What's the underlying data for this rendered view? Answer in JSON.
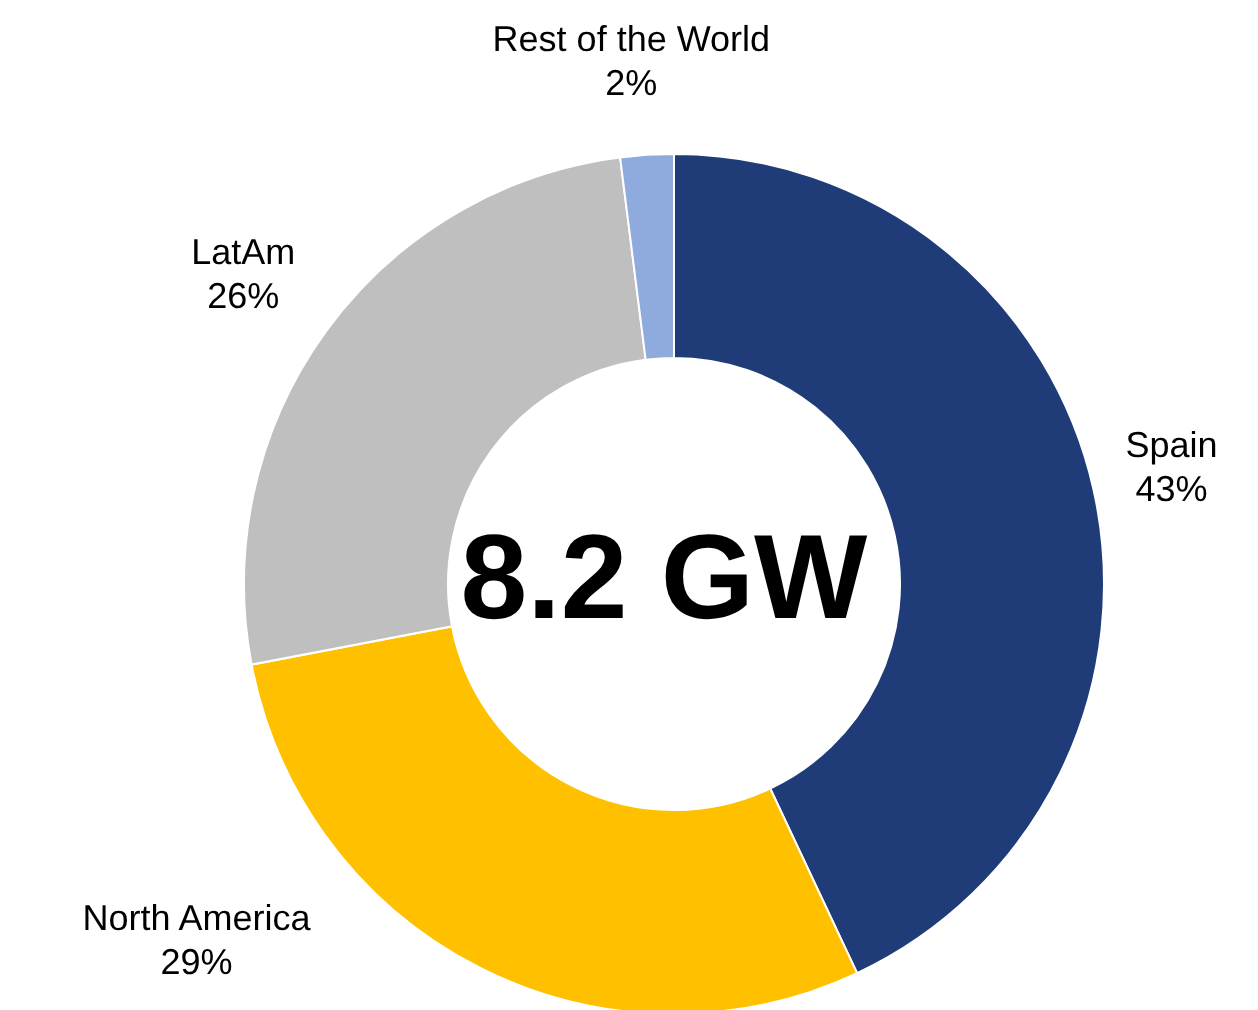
{
  "chart_data": {
    "type": "donut",
    "categories": [
      "Spain",
      "North America",
      "LatAm",
      "Rest of the World"
    ],
    "values": [
      43,
      29,
      26,
      2
    ],
    "colors": [
      "#1f3c78",
      "#ffc000",
      "#bfbfbf",
      "#8faadc"
    ],
    "value_labels": [
      "43%",
      "29%",
      "26%",
      "2%"
    ],
    "annotations": [
      "8.2 GW"
    ],
    "legend": false
  }
}
